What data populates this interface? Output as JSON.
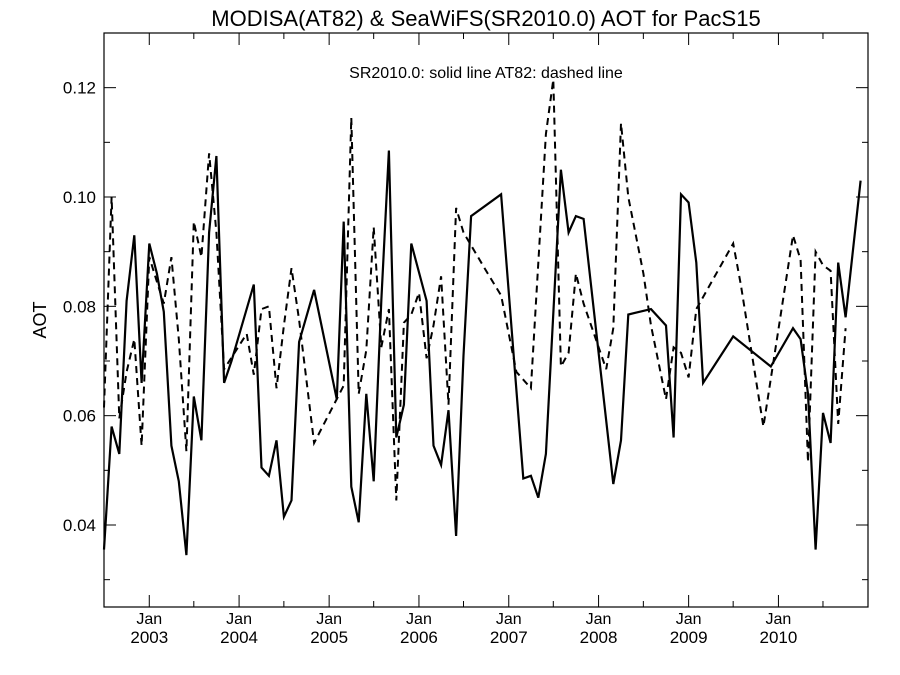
{
  "chart_data": {
    "type": "line",
    "title": "MODISA(AT82) & SeaWiFS(SR2010.0)  AOT for PacS15",
    "annotation": "SR2010.0: solid line   AT82: dashed line",
    "xlabel": "",
    "ylabel": "AOT",
    "xlim": [
      "2002-07-01",
      "2010-12-31"
    ],
    "ylim": [
      0.025,
      0.13
    ],
    "y_ticks": [
      "0.04",
      "0.06",
      "0.08",
      "0.10",
      "0.12"
    ],
    "x_ticks": [
      {
        "date": "2003-01-01",
        "month": "Jan",
        "year": "2003"
      },
      {
        "date": "2004-01-01",
        "month": "Jan",
        "year": "2004"
      },
      {
        "date": "2005-01-01",
        "month": "Jan",
        "year": "2005"
      },
      {
        "date": "2006-01-01",
        "month": "Jan",
        "year": "2006"
      },
      {
        "date": "2007-01-01",
        "month": "Jan",
        "year": "2007"
      },
      {
        "date": "2008-01-01",
        "month": "Jan",
        "year": "2008"
      },
      {
        "date": "2009-01-01",
        "month": "Jan",
        "year": "2009"
      },
      {
        "date": "2010-01-01",
        "month": "Jan",
        "year": "2010"
      }
    ],
    "grid": false,
    "series": [
      {
        "name": "SR2010.0",
        "style": "solid",
        "color": "#000000",
        "points": [
          [
            "2002-07-01",
            0.0355
          ],
          [
            "2002-08-01",
            0.058
          ],
          [
            "2002-09-01",
            0.053
          ],
          [
            "2002-10-01",
            0.081
          ],
          [
            "2002-11-01",
            0.093
          ],
          [
            "2002-12-01",
            0.066
          ],
          [
            "2003-01-01",
            0.0915
          ],
          [
            "2003-02-01",
            0.086
          ],
          [
            "2003-03-01",
            0.079
          ],
          [
            "2003-04-01",
            0.0545
          ],
          [
            "2003-05-01",
            0.048
          ],
          [
            "2003-06-01",
            0.0345
          ],
          [
            "2003-07-01",
            0.0635
          ],
          [
            "2003-08-01",
            0.0555
          ],
          [
            "2003-09-01",
            0.0935
          ],
          [
            "2003-10-01",
            0.1075
          ],
          [
            "2003-11-01",
            0.066
          ],
          [
            "2003-12-01",
            0.07
          ],
          [
            "2004-03-01",
            0.084
          ],
          [
            "2004-04-01",
            0.0505
          ],
          [
            "2004-05-01",
            0.049
          ],
          [
            "2004-06-01",
            0.0555
          ],
          [
            "2004-07-01",
            0.0415
          ],
          [
            "2004-08-01",
            0.0445
          ],
          [
            "2004-09-01",
            0.0735
          ],
          [
            "2004-11-01",
            0.083
          ],
          [
            "2005-02-01",
            0.063
          ],
          [
            "2005-03-01",
            0.0955
          ],
          [
            "2005-04-01",
            0.047
          ],
          [
            "2005-05-01",
            0.0405
          ],
          [
            "2005-06-01",
            0.064
          ],
          [
            "2005-07-01",
            0.048
          ],
          [
            "2005-08-01",
            0.081
          ],
          [
            "2005-09-01",
            0.1085
          ],
          [
            "2005-10-01",
            0.056
          ],
          [
            "2005-11-01",
            0.062
          ],
          [
            "2005-12-01",
            0.0915
          ],
          [
            "2006-02-01",
            0.081
          ],
          [
            "2006-03-01",
            0.0545
          ],
          [
            "2006-04-01",
            0.051
          ],
          [
            "2006-05-01",
            0.061
          ],
          [
            "2006-06-01",
            0.038
          ],
          [
            "2006-07-01",
            0.071
          ],
          [
            "2006-08-01",
            0.0965
          ],
          [
            "2006-12-01",
            0.1005
          ],
          [
            "2007-03-01",
            0.0485
          ],
          [
            "2007-04-01",
            0.049
          ],
          [
            "2007-05-01",
            0.045
          ],
          [
            "2007-06-01",
            0.053
          ],
          [
            "2007-08-01",
            0.105
          ],
          [
            "2007-09-01",
            0.0935
          ],
          [
            "2007-10-01",
            0.0965
          ],
          [
            "2007-11-01",
            0.096
          ],
          [
            "2008-03-01",
            0.0475
          ],
          [
            "2008-04-01",
            0.0555
          ],
          [
            "2008-05-01",
            0.0785
          ],
          [
            "2008-08-01",
            0.0795
          ],
          [
            "2008-10-01",
            0.0765
          ],
          [
            "2008-11-01",
            0.056
          ],
          [
            "2008-12-01",
            0.1005
          ],
          [
            "2009-01-01",
            0.099
          ],
          [
            "2009-02-01",
            0.088
          ],
          [
            "2009-03-01",
            0.066
          ],
          [
            "2009-07-01",
            0.0745
          ],
          [
            "2009-12-01",
            0.069
          ],
          [
            "2010-03-01",
            0.076
          ],
          [
            "2010-04-01",
            0.074
          ],
          [
            "2010-05-01",
            0.064
          ],
          [
            "2010-06-01",
            0.0355
          ],
          [
            "2010-07-01",
            0.0605
          ],
          [
            "2010-08-01",
            0.055
          ],
          [
            "2010-09-01",
            0.088
          ],
          [
            "2010-10-01",
            0.078
          ],
          [
            "2010-12-01",
            0.103
          ]
        ]
      },
      {
        "name": "AT82",
        "style": "dashed",
        "color": "#000000",
        "points": [
          [
            "2002-07-01",
            0.0615
          ],
          [
            "2002-08-01",
            0.1
          ],
          [
            "2002-09-01",
            0.0595
          ],
          [
            "2002-10-01",
            0.068
          ],
          [
            "2002-11-01",
            0.074
          ],
          [
            "2002-12-01",
            0.0545
          ],
          [
            "2003-01-01",
            0.089
          ],
          [
            "2003-02-01",
            0.0845
          ],
          [
            "2003-03-01",
            0.0805
          ],
          [
            "2003-04-01",
            0.089
          ],
          [
            "2003-05-01",
            0.074
          ],
          [
            "2003-06-01",
            0.0535
          ],
          [
            "2003-07-01",
            0.0955
          ],
          [
            "2003-08-01",
            0.089
          ],
          [
            "2003-09-01",
            0.108
          ],
          [
            "2003-10-01",
            0.0935
          ],
          [
            "2003-11-01",
            0.0685
          ],
          [
            "2004-02-01",
            0.075
          ],
          [
            "2004-03-01",
            0.0675
          ],
          [
            "2004-04-01",
            0.0795
          ],
          [
            "2004-05-01",
            0.08
          ],
          [
            "2004-06-01",
            0.065
          ],
          [
            "2004-07-01",
            0.0765
          ],
          [
            "2004-08-01",
            0.087
          ],
          [
            "2004-09-01",
            0.0775
          ],
          [
            "2004-11-01",
            0.055
          ],
          [
            "2005-03-01",
            0.0655
          ],
          [
            "2005-04-01",
            0.1145
          ],
          [
            "2005-05-01",
            0.064
          ],
          [
            "2005-06-01",
            0.072
          ],
          [
            "2005-07-01",
            0.0945
          ],
          [
            "2005-08-01",
            0.0725
          ],
          [
            "2005-09-01",
            0.0795
          ],
          [
            "2005-10-01",
            0.0445
          ],
          [
            "2005-11-01",
            0.077
          ],
          [
            "2005-12-01",
            0.0785
          ],
          [
            "2006-01-01",
            0.0825
          ],
          [
            "2006-02-01",
            0.0705
          ],
          [
            "2006-03-01",
            0.0765
          ],
          [
            "2006-04-01",
            0.0855
          ],
          [
            "2006-05-01",
            0.062
          ],
          [
            "2006-06-01",
            0.098
          ],
          [
            "2006-07-01",
            0.0935
          ],
          [
            "2006-10-01",
            0.0865
          ],
          [
            "2006-12-01",
            0.082
          ],
          [
            "2007-02-01",
            0.068
          ],
          [
            "2007-04-01",
            0.065
          ],
          [
            "2007-06-01",
            0.1115
          ],
          [
            "2007-07-01",
            0.1215
          ],
          [
            "2007-08-01",
            0.069
          ],
          [
            "2007-09-01",
            0.0715
          ],
          [
            "2007-10-01",
            0.086
          ],
          [
            "2007-11-01",
            0.0805
          ],
          [
            "2008-02-01",
            0.0685
          ],
          [
            "2008-03-01",
            0.076
          ],
          [
            "2008-04-01",
            0.1135
          ],
          [
            "2008-05-01",
            0.1
          ],
          [
            "2008-07-01",
            0.086
          ],
          [
            "2008-08-01",
            0.0765
          ],
          [
            "2008-10-01",
            0.063
          ],
          [
            "2008-11-01",
            0.0725
          ],
          [
            "2008-12-01",
            0.0715
          ],
          [
            "2009-01-01",
            0.067
          ],
          [
            "2009-02-01",
            0.0795
          ],
          [
            "2009-07-01",
            0.0915
          ],
          [
            "2009-08-01",
            0.084
          ],
          [
            "2009-11-01",
            0.058
          ],
          [
            "2010-03-01",
            0.093
          ],
          [
            "2010-04-01",
            0.0885
          ],
          [
            "2010-05-01",
            0.0515
          ],
          [
            "2010-06-01",
            0.09
          ],
          [
            "2010-07-01",
            0.0875
          ],
          [
            "2010-08-01",
            0.0865
          ],
          [
            "2010-09-01",
            0.0585
          ],
          [
            "2010-10-01",
            0.076
          ]
        ]
      }
    ]
  }
}
